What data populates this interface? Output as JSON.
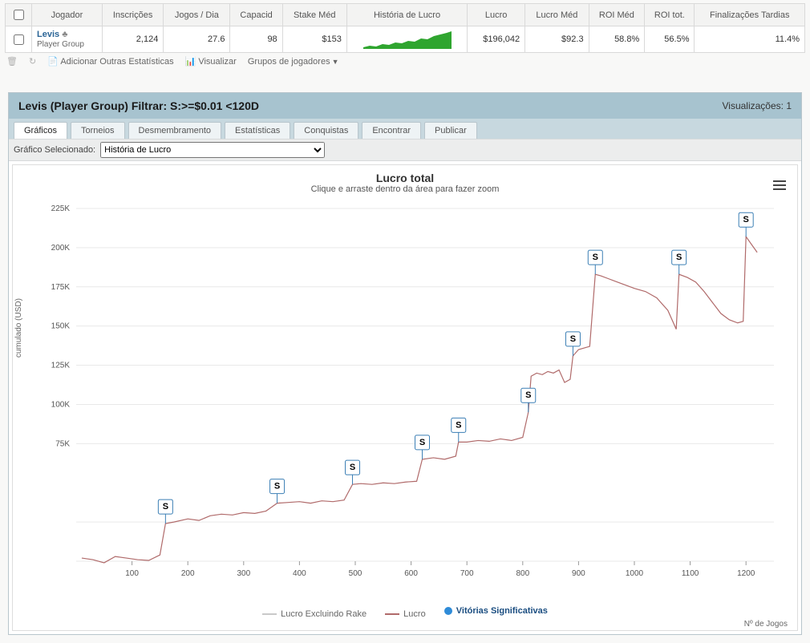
{
  "table": {
    "headers": [
      "Jogador",
      "Inscrições",
      "Jogos / Dia",
      "Capacid",
      "Stake Méd",
      "História de Lucro",
      "Lucro",
      "Lucro Méd",
      "ROI Méd",
      "ROI tot.",
      "Finalizações Tardias"
    ],
    "row": {
      "player_name": "Levis",
      "player_sub": "Player Group",
      "inscricoes": "2,124",
      "jogos_dia": "27.6",
      "capacid": "98",
      "stake_med": "$153",
      "lucro": "$196,042",
      "lucro_med": "$92.3",
      "roi_med": "58.8%",
      "roi_tot": "56.5%",
      "final_tardias": "11.4%"
    }
  },
  "toolbar": {
    "add_stats": "Adicionar Outras Estatísticas",
    "visualizar": "Visualizar",
    "grupos": "Grupos de jogadores"
  },
  "panel": {
    "title": "Levis (Player Group) Filtrar: S:>=$0.01 <120D",
    "views_label": "Visualizações: 1"
  },
  "tabs": [
    "Gráficos",
    "Torneios",
    "Desmembramento",
    "Estatísticas",
    "Conquistas",
    "Encontrar",
    "Publicar"
  ],
  "selector": {
    "label": "Gráfico Selecionado:",
    "value": "História de Lucro"
  },
  "chart": {
    "title": "Lucro total",
    "subtitle": "Clique e arraste dentro da área para fazer zoom",
    "ylabel": "cumulado (USD)",
    "xlabel": "Nº de Jogos",
    "ylim": [
      0,
      225000
    ],
    "yticks": [
      0,
      25000,
      75000,
      100000,
      125000,
      150000,
      175000,
      200000,
      225000
    ],
    "ytick_labels": [
      "",
      "",
      "75K",
      "100K",
      "125K",
      "150K",
      "175K",
      "200K",
      "225K"
    ],
    "xlim": [
      0,
      1250
    ],
    "xticks": [
      100,
      200,
      300,
      400,
      500,
      600,
      700,
      800,
      900,
      1000,
      1100,
      1200
    ],
    "colors": {
      "lucro": "#b06a6a",
      "rake": "#c9c9c9",
      "marker_stroke": "#3b7fb5",
      "sig_dot": "#2e8bd8",
      "grid": "#e9e9e9",
      "bg": "#ffffff",
      "spark_fill": "#2fa52f"
    },
    "legend": {
      "rake": "Lucro Excluindo Rake",
      "lucro": "Lucro",
      "sig": "Vitórias Significativas"
    },
    "marker_symbol": "S",
    "markers_x": [
      160,
      360,
      495,
      620,
      685,
      810,
      890,
      930,
      1080,
      1200
    ],
    "markers_y": [
      24000,
      37000,
      49000,
      65000,
      76000,
      95000,
      131000,
      183000,
      183000,
      207000
    ],
    "series_lucro": [
      [
        10,
        2000
      ],
      [
        30,
        1000
      ],
      [
        50,
        -1000
      ],
      [
        70,
        3000
      ],
      [
        90,
        2000
      ],
      [
        110,
        1000
      ],
      [
        130,
        500
      ],
      [
        150,
        4000
      ],
      [
        160,
        24000
      ],
      [
        175,
        25000
      ],
      [
        200,
        27000
      ],
      [
        220,
        26000
      ],
      [
        240,
        29000
      ],
      [
        260,
        30000
      ],
      [
        280,
        29500
      ],
      [
        300,
        31000
      ],
      [
        320,
        30500
      ],
      [
        340,
        32000
      ],
      [
        360,
        37000
      ],
      [
        380,
        37500
      ],
      [
        400,
        38000
      ],
      [
        420,
        37000
      ],
      [
        440,
        38500
      ],
      [
        460,
        38000
      ],
      [
        480,
        39000
      ],
      [
        495,
        49000
      ],
      [
        510,
        49500
      ],
      [
        530,
        49000
      ],
      [
        550,
        50000
      ],
      [
        570,
        49500
      ],
      [
        590,
        50500
      ],
      [
        610,
        51000
      ],
      [
        620,
        65000
      ],
      [
        640,
        66000
      ],
      [
        660,
        65000
      ],
      [
        680,
        67000
      ],
      [
        685,
        76000
      ],
      [
        700,
        76000
      ],
      [
        720,
        77000
      ],
      [
        740,
        76500
      ],
      [
        760,
        78000
      ],
      [
        780,
        77000
      ],
      [
        800,
        79000
      ],
      [
        810,
        95000
      ],
      [
        815,
        118000
      ],
      [
        825,
        120000
      ],
      [
        835,
        119000
      ],
      [
        845,
        121000
      ],
      [
        855,
        120000
      ],
      [
        865,
        122000
      ],
      [
        875,
        114000
      ],
      [
        885,
        116000
      ],
      [
        890,
        131000
      ],
      [
        900,
        135000
      ],
      [
        920,
        137000
      ],
      [
        930,
        183000
      ],
      [
        940,
        182000
      ],
      [
        955,
        180000
      ],
      [
        970,
        178000
      ],
      [
        985,
        176000
      ],
      [
        1000,
        174000
      ],
      [
        1020,
        172000
      ],
      [
        1040,
        168000
      ],
      [
        1060,
        160000
      ],
      [
        1075,
        148000
      ],
      [
        1080,
        183000
      ],
      [
        1095,
        181000
      ],
      [
        1110,
        178000
      ],
      [
        1125,
        172000
      ],
      [
        1140,
        165000
      ],
      [
        1155,
        158000
      ],
      [
        1170,
        154000
      ],
      [
        1185,
        152000
      ],
      [
        1195,
        153000
      ],
      [
        1200,
        207000
      ],
      [
        1210,
        202000
      ],
      [
        1220,
        197000
      ]
    ]
  }
}
